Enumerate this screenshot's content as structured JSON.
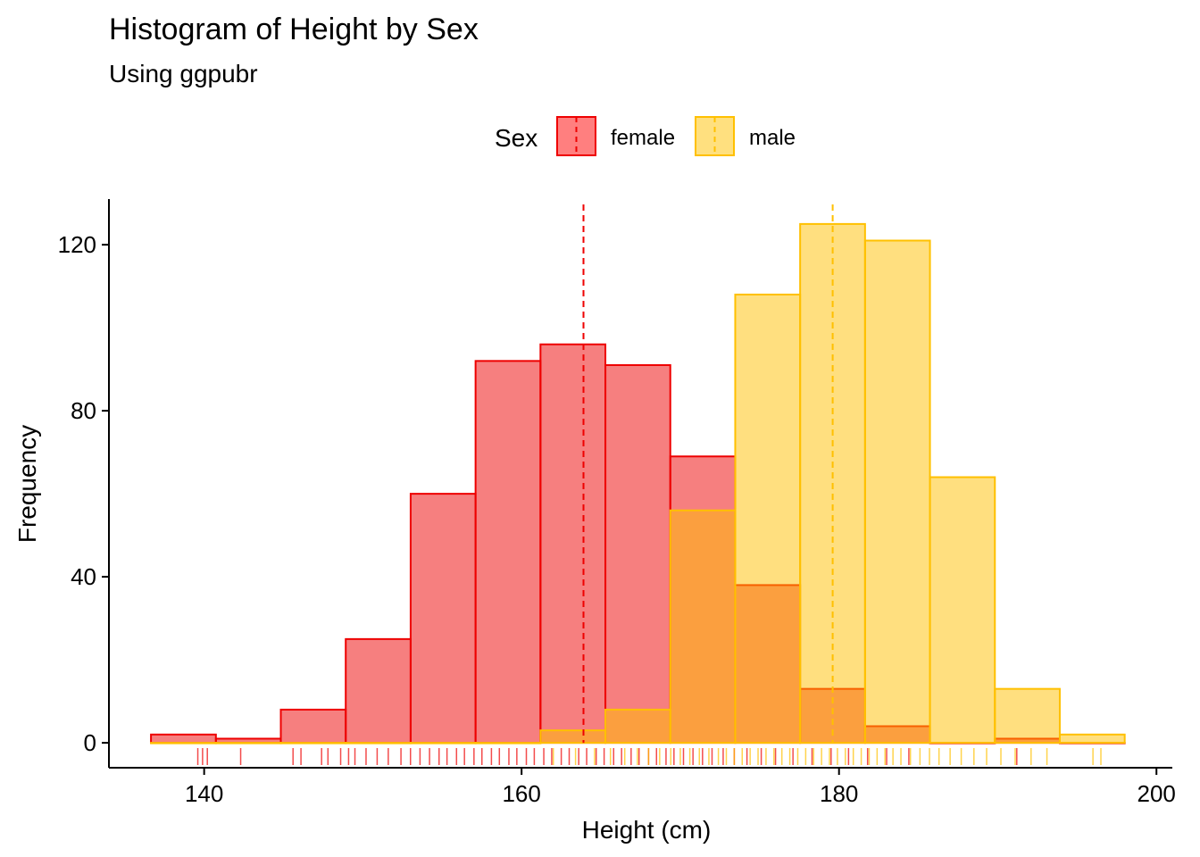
{
  "chart_data": {
    "type": "bar",
    "title": "Histogram of Height by Sex",
    "subtitle": "Using ggpubr",
    "xlabel": "Height (cm)",
    "ylabel": "Frequency",
    "xlim": [
      134,
      201
    ],
    "ylim": [
      -6,
      131
    ],
    "xticks": [
      140,
      160,
      180,
      200
    ],
    "yticks": [
      0,
      40,
      80,
      120
    ],
    "grid": false,
    "legend": {
      "title": "Sex",
      "position": "top"
    },
    "bin_edges": [
      136.65,
      140.74,
      144.83,
      148.92,
      153.01,
      157.1,
      161.19,
      165.28,
      169.37,
      173.46,
      177.55,
      181.64,
      185.73,
      189.82,
      193.91,
      198.0
    ],
    "series": [
      {
        "name": "female",
        "color": "#EE0000",
        "fill": "#FF7F7F",
        "mean": 163.9,
        "values": [
          2,
          1,
          8,
          25,
          60,
          92,
          96,
          91,
          69,
          38,
          13,
          4,
          0,
          1,
          0
        ],
        "rug": [
          139.6,
          139.9,
          140.2,
          142.3,
          145.6,
          146.1,
          147.4,
          147.8,
          148.6,
          149.1,
          149.5,
          150.2,
          150.9,
          151.6,
          152.4,
          153.0,
          153.6,
          154.2,
          154.8,
          155.3,
          155.9,
          156.4,
          157.0,
          157.5,
          158.1,
          158.6,
          159.2,
          159.7,
          160.3,
          160.8,
          161.4,
          161.9,
          162.5,
          163.0,
          163.6,
          164.1,
          164.7,
          165.2,
          165.8,
          166.3,
          166.9,
          167.4,
          168.0,
          168.5,
          169.1,
          169.6,
          170.2,
          170.8,
          171.4,
          172.0,
          172.7,
          173.4,
          174.2,
          175.1,
          176.0,
          177.1,
          178.3,
          179.5,
          180.6,
          181.8,
          183.0,
          184.4,
          191.2
        ]
      },
      {
        "name": "male",
        "color": "#FFC000",
        "fill": "#FFE07F",
        "mean": 179.6,
        "values": [
          0,
          0,
          0,
          0,
          0,
          0,
          3,
          8,
          56,
          108,
          125,
          121,
          64,
          13,
          2
        ],
        "rug": [
          162.0,
          163.4,
          164.6,
          165.6,
          166.5,
          167.3,
          168.0,
          168.7,
          169.4,
          170.0,
          170.6,
          171.2,
          171.8,
          172.4,
          172.9,
          173.4,
          173.9,
          174.4,
          174.9,
          175.4,
          175.9,
          176.4,
          176.9,
          177.4,
          177.9,
          178.4,
          178.9,
          179.4,
          179.9,
          180.4,
          180.9,
          181.4,
          181.9,
          182.4,
          182.9,
          183.4,
          183.9,
          184.5,
          185.1,
          185.7,
          186.3,
          187.0,
          187.7,
          188.5,
          189.3,
          190.2,
          191.1,
          192.1,
          193.1,
          196.0,
          196.5
        ]
      }
    ]
  }
}
